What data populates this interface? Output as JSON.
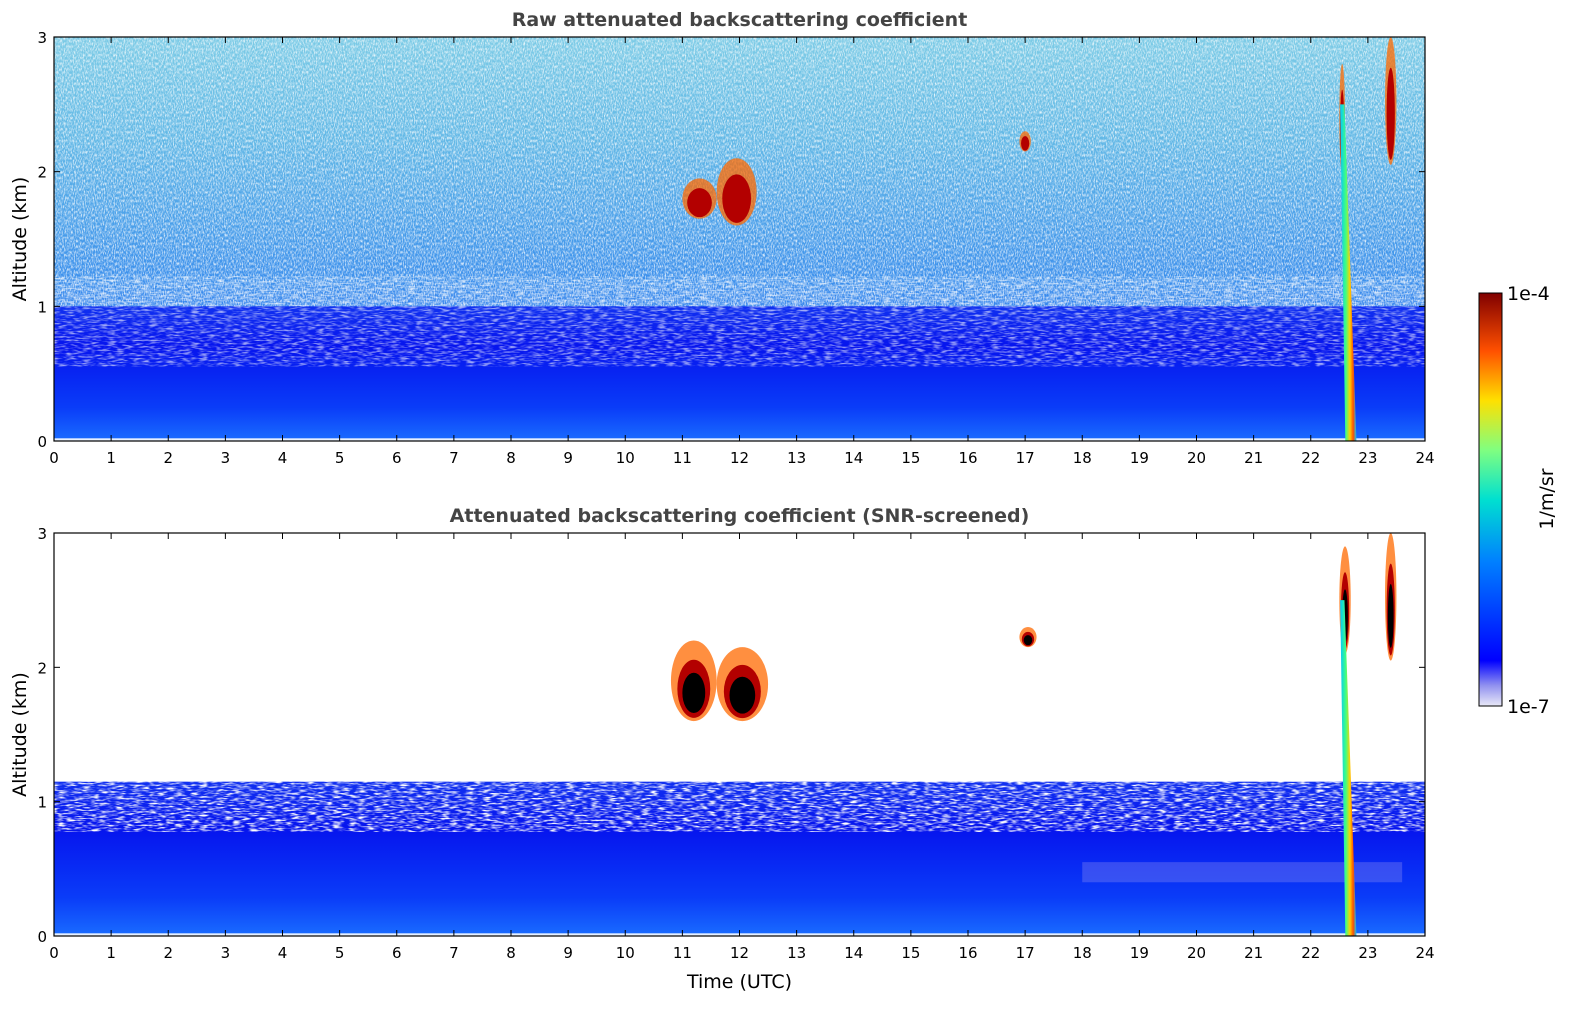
{
  "chart_data": [
    {
      "type": "heatmap",
      "title": "Raw attenuated backscattering coefficient",
      "xlabel": "",
      "ylabel": "Altitude (km)",
      "xlim": [
        0,
        24
      ],
      "ylim": [
        0,
        3
      ],
      "x_ticks": [
        "0",
        "1",
        "2",
        "3",
        "4",
        "5",
        "6",
        "7",
        "8",
        "9",
        "10",
        "11",
        "12",
        "13",
        "14",
        "15",
        "16",
        "17",
        "18",
        "19",
        "20",
        "21",
        "22",
        "23",
        "24"
      ],
      "y_ticks": [
        "0",
        "1",
        "2",
        "3"
      ],
      "grid": false,
      "features": [
        {
          "kind": "boundary_layer",
          "x": [
            0,
            24
          ],
          "y": [
            0,
            1.0
          ]
        },
        {
          "kind": "cloud",
          "x": [
            11.0,
            11.6
          ],
          "y": [
            1.65,
            1.95
          ]
        },
        {
          "kind": "cloud",
          "x": [
            11.6,
            12.3
          ],
          "y": [
            1.6,
            2.1
          ]
        },
        {
          "kind": "cloud",
          "x": [
            16.9,
            17.1
          ],
          "y": [
            2.15,
            2.3
          ]
        },
        {
          "kind": "cloud",
          "x": [
            22.5,
            22.6
          ],
          "y": [
            2.0,
            2.8
          ]
        },
        {
          "kind": "cloud",
          "x": [
            23.3,
            23.5
          ],
          "y": [
            2.05,
            3.0
          ]
        },
        {
          "kind": "precipitation",
          "x": [
            22.5,
            22.8
          ],
          "y": [
            0,
            2.5
          ]
        }
      ]
    },
    {
      "type": "heatmap",
      "title": "Attenuated backscattering coefficient (SNR-screened)",
      "xlabel": "Time (UTC)",
      "ylabel": "Altitude (km)",
      "xlim": [
        0,
        24
      ],
      "ylim": [
        0,
        3
      ],
      "x_ticks": [
        "0",
        "1",
        "2",
        "3",
        "4",
        "5",
        "6",
        "7",
        "8",
        "9",
        "10",
        "11",
        "12",
        "13",
        "14",
        "15",
        "16",
        "17",
        "18",
        "19",
        "20",
        "21",
        "22",
        "23",
        "24"
      ],
      "y_ticks": [
        "0",
        "1",
        "2",
        "3"
      ],
      "grid": false,
      "features": [
        {
          "kind": "boundary_layer",
          "x": [
            0,
            24
          ],
          "y": [
            0,
            1.0
          ]
        },
        {
          "kind": "cloud",
          "x": [
            10.8,
            11.6
          ],
          "y": [
            1.6,
            2.2
          ]
        },
        {
          "kind": "cloud",
          "x": [
            11.6,
            12.5
          ],
          "y": [
            1.6,
            2.15
          ]
        },
        {
          "kind": "cloud",
          "x": [
            16.9,
            17.2
          ],
          "y": [
            2.15,
            2.3
          ]
        },
        {
          "kind": "cloud",
          "x": [
            22.5,
            22.7
          ],
          "y": [
            2.1,
            2.9
          ]
        },
        {
          "kind": "cloud",
          "x": [
            23.3,
            23.5
          ],
          "y": [
            2.05,
            3.0
          ]
        },
        {
          "kind": "precipitation",
          "x": [
            22.5,
            22.8
          ],
          "y": [
            0,
            2.5
          ]
        }
      ]
    }
  ],
  "colorbar": {
    "label": "1/m/sr",
    "max_label": "1e-4",
    "min_label": "1e-7",
    "scale": "log",
    "range": [
      "1e-7",
      "1e-4"
    ],
    "colormap": "jet"
  }
}
